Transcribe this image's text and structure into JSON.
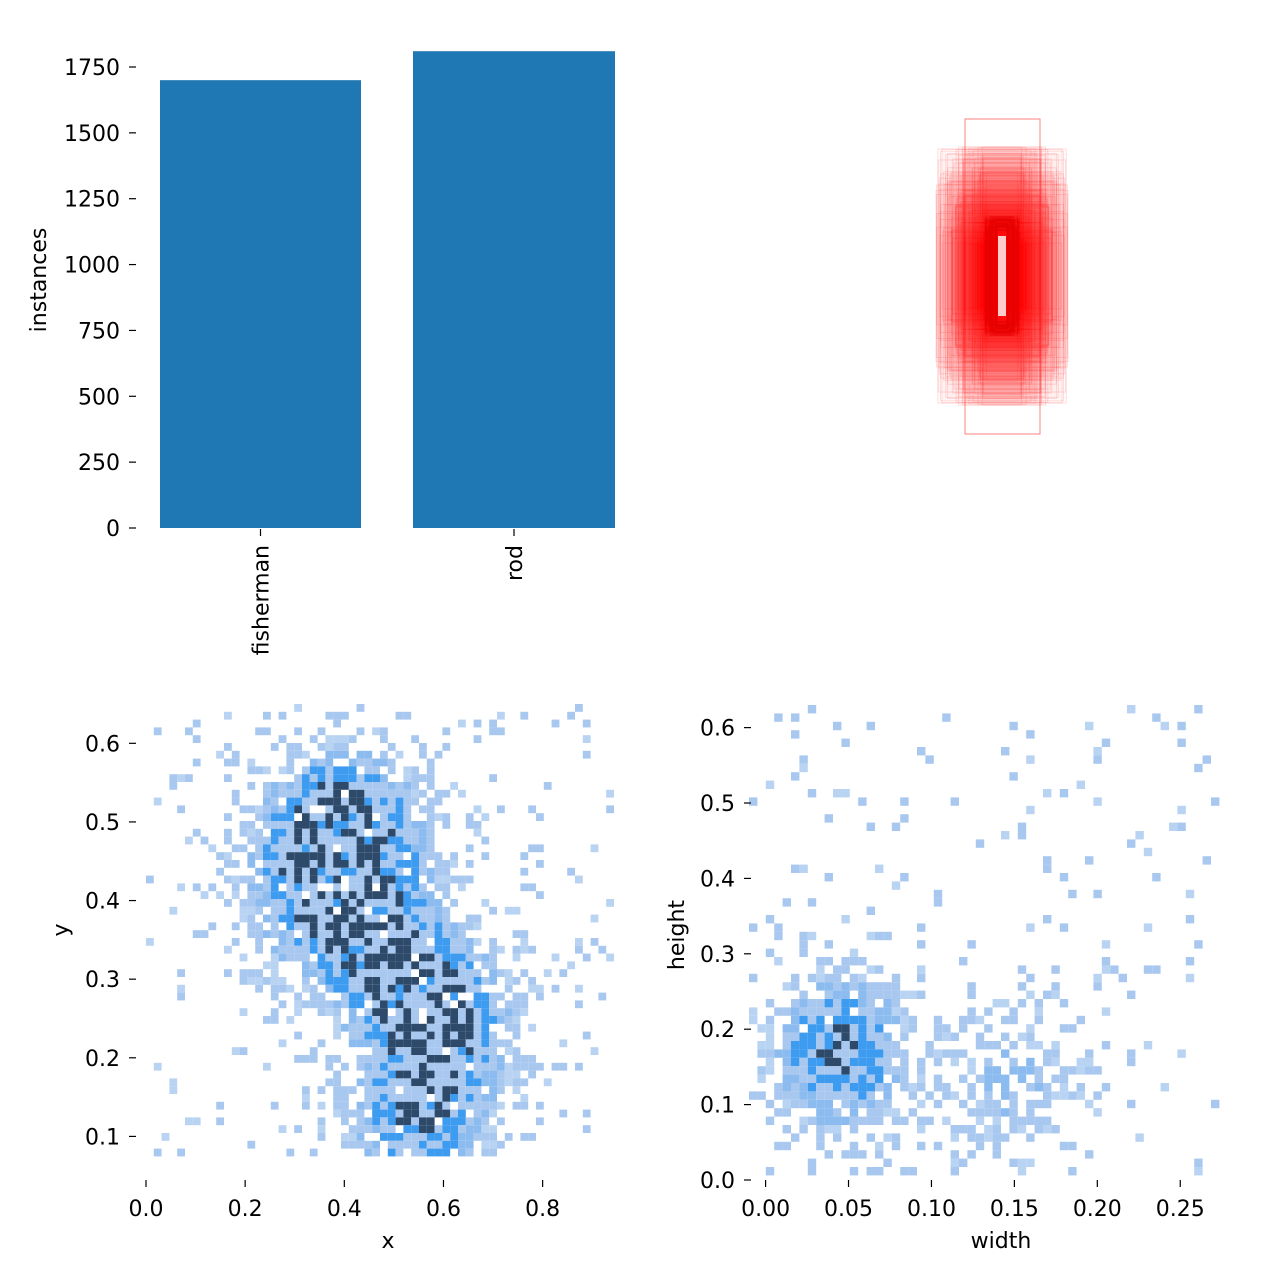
{
  "chart_data": [
    {
      "type": "bar",
      "categories": [
        "fisherman",
        "rod"
      ],
      "values": [
        1700,
        1810
      ],
      "ylabel": "instances",
      "xlabel": "",
      "ylim": [
        0,
        1810
      ],
      "yticks": [
        "0",
        "250",
        "500",
        "750",
        "1000",
        "1250",
        "1500",
        "1750"
      ],
      "color": "#1f77b4"
    },
    {
      "type": "box-overlay",
      "description_color": "#ff0000"
    },
    {
      "type": "heatmap",
      "xlabel": "x",
      "ylabel": "y",
      "xlim": [
        0,
        0.95
      ],
      "ylim": [
        0.07,
        0.65
      ],
      "xticks": [
        "0.0",
        "0.2",
        "0.4",
        "0.6",
        "0.8"
      ],
      "yticks": [
        "0.1",
        "0.2",
        "0.3",
        "0.4",
        "0.5",
        "0.6"
      ],
      "hotspots": [
        [
          0.36,
          0.5,
          0.7
        ],
        [
          0.48,
          0.33,
          0.8
        ],
        [
          0.6,
          0.25,
          0.9
        ],
        [
          0.55,
          0.12,
          0.8
        ],
        [
          0.33,
          0.4,
          0.6
        ],
        [
          0.45,
          0.48,
          0.6
        ]
      ],
      "color": "#1f8ff0"
    },
    {
      "type": "heatmap",
      "xlabel": "width",
      "ylabel": "height",
      "xlim": [
        -0.01,
        0.28
      ],
      "ylim": [
        0.0,
        0.63
      ],
      "xticks": [
        "0.00",
        "0.05",
        "0.10",
        "0.15",
        "0.20",
        "0.25"
      ],
      "yticks": [
        "0.0",
        "0.1",
        "0.2",
        "0.3",
        "0.4",
        "0.5",
        "0.6"
      ],
      "hotspots": [
        [
          0.045,
          0.17,
          1.0
        ],
        [
          0.15,
          0.13,
          0.5
        ]
      ],
      "color": "#1f8ff0"
    }
  ]
}
